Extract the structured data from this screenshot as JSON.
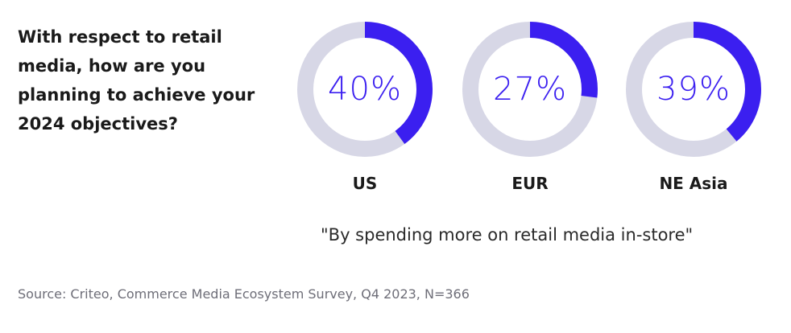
{
  "question": "With respect to retail media, how are you planning to achieve your 2024 objectives?",
  "colors": {
    "accent": "#3b1ff0",
    "track": "#d7d7e6",
    "text": "#1a1a1a",
    "muted": "#6e6e78"
  },
  "chart_data": {
    "type": "pie",
    "variant": "donut",
    "series": [
      {
        "name": "US",
        "value": 40,
        "label": "40%"
      },
      {
        "name": "EUR",
        "value": 27,
        "label": "27%"
      },
      {
        "name": "NE Asia",
        "value": 39,
        "label": "39%"
      }
    ],
    "unit": "%",
    "max": 100
  },
  "footnote": "\"By spending more on retail media in-store\"",
  "source": "Source: Criteo, Commerce Media Ecosystem Survey, Q4 2023, N=366"
}
